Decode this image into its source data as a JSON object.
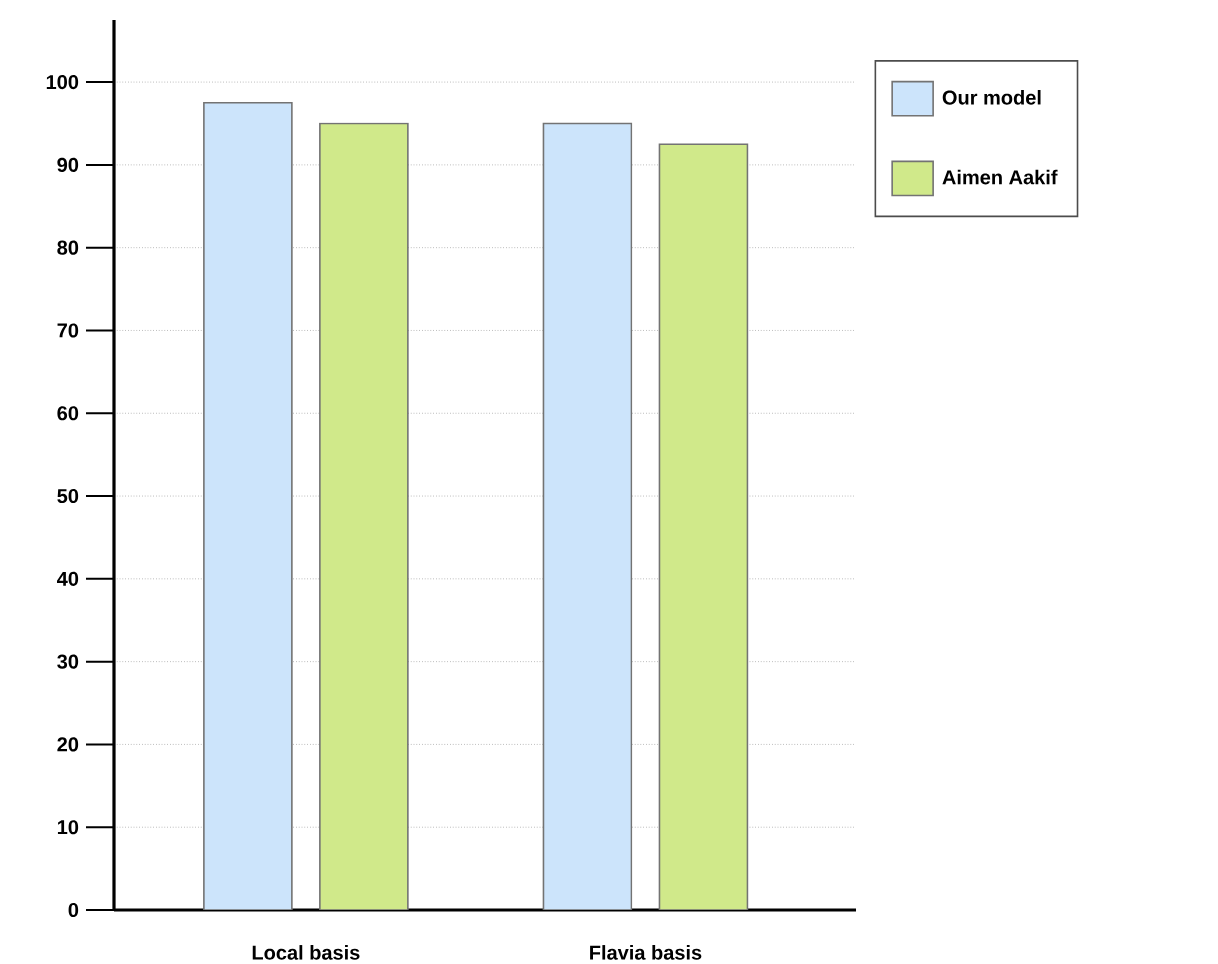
{
  "chart_data": {
    "type": "bar",
    "categories": [
      "Local basis",
      "Flavia basis"
    ],
    "series": [
      {
        "name": "Our model",
        "color": "#cce4fb",
        "values": [
          97.5,
          95
        ]
      },
      {
        "name": "Aimen Aakif",
        "color": "#d0e98a",
        "values": [
          95,
          92.5
        ]
      }
    ],
    "ylim": [
      0,
      107.5
    ],
    "yticks": [
      0,
      10,
      20,
      30,
      40,
      50,
      60,
      70,
      80,
      90,
      100
    ],
    "grid": "y",
    "legend": "top right"
  }
}
